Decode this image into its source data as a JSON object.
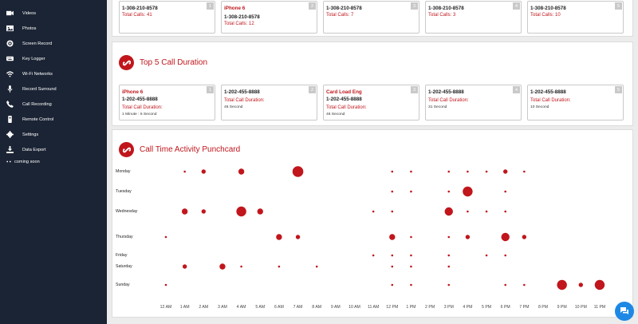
{
  "sidebar": {
    "items": [
      {
        "label": "Videos",
        "icon": "video-icon"
      },
      {
        "label": "Photos",
        "icon": "photo-icon"
      },
      {
        "label": "Screen Record",
        "icon": "screen-record-icon"
      },
      {
        "label": "Key Logger",
        "icon": "keyboard-icon"
      },
      {
        "label": "Wi-Fi Networks",
        "icon": "wifi-icon"
      },
      {
        "label": "Record Surround",
        "icon": "microphone-icon"
      },
      {
        "label": "Call Recording",
        "icon": "phone-icon"
      },
      {
        "label": "Remote Control",
        "icon": "remote-control-icon"
      },
      {
        "label": "Settings",
        "icon": "gear-icon"
      },
      {
        "label": "Data Export",
        "icon": "download-icon"
      },
      {
        "label": "coming soon",
        "icon": "ellipsis-icon"
      }
    ]
  },
  "top_calls": {
    "cards": [
      {
        "num": "1",
        "line1": "1-308-210-8578",
        "line1_red": false,
        "line2": "",
        "stat": "Total Calls: 41"
      },
      {
        "num": "2",
        "line1": "iPhone 6",
        "line1_red": true,
        "line2": "1-308-210-8578",
        "stat": "Total Calls: 12"
      },
      {
        "num": "3",
        "line1": "1-308-210-8578",
        "line1_red": false,
        "line2": "",
        "stat": "Total Calls: 7"
      },
      {
        "num": "4",
        "line1": "1-308-210-8578",
        "line1_red": false,
        "line2": "",
        "stat": "Total Calls: 3"
      },
      {
        "num": "5",
        "line1": "1-308-210-8578",
        "line1_red": false,
        "line2": "",
        "stat": "Total Calls: 10"
      }
    ]
  },
  "duration": {
    "title": "Top 5 Call Duration",
    "duration_label": "Total Call Duration:",
    "cards": [
      {
        "num": "1",
        "name": "iPhone 6",
        "number": "1-202-455-8888",
        "value": "1 Minute : 6 Second"
      },
      {
        "num": "2",
        "name": "",
        "number": "1-202-455-8888",
        "value": "46 Second"
      },
      {
        "num": "3",
        "name": "Card Load Eng",
        "number": "1-202-455-8888",
        "value": "46 Second"
      },
      {
        "num": "4",
        "name": "",
        "number": "1-202-455-8888",
        "value": "31 Second"
      },
      {
        "num": "5",
        "name": "",
        "number": "1-202-455-8888",
        "value": "10 Second"
      }
    ]
  },
  "punchcard": {
    "title": "Call Time Activity Punchcard",
    "dot_color": "#c0161c"
  },
  "chart_data": {
    "type": "scatter",
    "title": "Call Time Activity Punchcard",
    "days": [
      "Monday",
      "Tuesday",
      "Wednesday",
      "Thursday",
      "Friday",
      "Saturday",
      "Sunday"
    ],
    "hours": [
      "12 AM",
      "1 AM",
      "2 AM",
      "3 AM",
      "4 AM",
      "5 AM",
      "6 AM",
      "7 AM",
      "8 AM",
      "9 AM",
      "10 AM",
      "11 AM",
      "12 PM",
      "1 PM",
      "2 PM",
      "3 PM",
      "4 PM",
      "5 PM",
      "6 PM",
      "7 PM",
      "8 PM",
      "9 PM",
      "10 PM",
      "11 PM"
    ],
    "points": [
      {
        "day": 0,
        "hour": 1,
        "size": 1
      },
      {
        "day": 0,
        "hour": 2,
        "size": 2
      },
      {
        "day": 0,
        "hour": 4,
        "size": 3
      },
      {
        "day": 0,
        "hour": 7,
        "size": 6
      },
      {
        "day": 0,
        "hour": 12,
        "size": 1
      },
      {
        "day": 0,
        "hour": 13,
        "size": 1
      },
      {
        "day": 0,
        "hour": 15,
        "size": 1
      },
      {
        "day": 0,
        "hour": 16,
        "size": 1
      },
      {
        "day": 0,
        "hour": 17,
        "size": 1
      },
      {
        "day": 0,
        "hour": 18,
        "size": 2
      },
      {
        "day": 0,
        "hour": 19,
        "size": 1
      },
      {
        "day": 1,
        "hour": 12,
        "size": 1
      },
      {
        "day": 1,
        "hour": 13,
        "size": 1
      },
      {
        "day": 1,
        "hour": 15,
        "size": 1
      },
      {
        "day": 1,
        "hour": 16,
        "size": 5
      },
      {
        "day": 1,
        "hour": 18,
        "size": 1
      },
      {
        "day": 2,
        "hour": 1,
        "size": 3
      },
      {
        "day": 2,
        "hour": 2,
        "size": 2
      },
      {
        "day": 2,
        "hour": 4,
        "size": 5
      },
      {
        "day": 2,
        "hour": 5,
        "size": 3
      },
      {
        "day": 2,
        "hour": 11,
        "size": 1
      },
      {
        "day": 2,
        "hour": 12,
        "size": 1
      },
      {
        "day": 2,
        "hour": 15,
        "size": 4
      },
      {
        "day": 2,
        "hour": 16,
        "size": 1
      },
      {
        "day": 2,
        "hour": 17,
        "size": 1
      },
      {
        "day": 2,
        "hour": 18,
        "size": 1
      },
      {
        "day": 3,
        "hour": 0,
        "size": 1
      },
      {
        "day": 3,
        "hour": 6,
        "size": 3
      },
      {
        "day": 3,
        "hour": 7,
        "size": 2
      },
      {
        "day": 3,
        "hour": 12,
        "size": 3
      },
      {
        "day": 3,
        "hour": 13,
        "size": 1
      },
      {
        "day": 3,
        "hour": 15,
        "size": 1
      },
      {
        "day": 3,
        "hour": 16,
        "size": 2
      },
      {
        "day": 3,
        "hour": 18,
        "size": 4
      },
      {
        "day": 3,
        "hour": 19,
        "size": 2
      },
      {
        "day": 4,
        "hour": 11,
        "size": 1
      },
      {
        "day": 4,
        "hour": 12,
        "size": 1
      },
      {
        "day": 4,
        "hour": 13,
        "size": 1
      },
      {
        "day": 4,
        "hour": 15,
        "size": 1
      },
      {
        "day": 4,
        "hour": 17,
        "size": 1
      },
      {
        "day": 4,
        "hour": 18,
        "size": 1
      },
      {
        "day": 5,
        "hour": 1,
        "size": 2
      },
      {
        "day": 5,
        "hour": 3,
        "size": 3
      },
      {
        "day": 5,
        "hour": 4,
        "size": 1
      },
      {
        "day": 5,
        "hour": 6,
        "size": 1
      },
      {
        "day": 5,
        "hour": 8,
        "size": 1
      },
      {
        "day": 5,
        "hour": 12,
        "size": 1
      },
      {
        "day": 5,
        "hour": 13,
        "size": 1
      },
      {
        "day": 5,
        "hour": 15,
        "size": 1
      },
      {
        "day": 6,
        "hour": 0,
        "size": 1
      },
      {
        "day": 6,
        "hour": 12,
        "size": 1
      },
      {
        "day": 6,
        "hour": 13,
        "size": 1
      },
      {
        "day": 6,
        "hour": 15,
        "size": 1
      },
      {
        "day": 6,
        "hour": 18,
        "size": 1
      },
      {
        "day": 6,
        "hour": 19,
        "size": 1
      },
      {
        "day": 6,
        "hour": 21,
        "size": 5
      },
      {
        "day": 6,
        "hour": 22,
        "size": 2
      },
      {
        "day": 6,
        "hour": 23,
        "size": 5
      }
    ]
  }
}
